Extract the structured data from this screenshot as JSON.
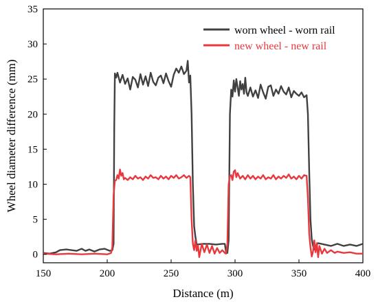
{
  "chart_data": {
    "type": "line",
    "title": "",
    "xlabel": "Distance (m)",
    "ylabel": "Wheel diameter difference (mm)",
    "xlim": [
      150,
      400
    ],
    "ylim": [
      -1.2,
      35
    ],
    "xticks": [
      150,
      200,
      250,
      300,
      350,
      400
    ],
    "yticks": [
      0,
      5,
      10,
      15,
      20,
      25,
      30,
      35
    ],
    "grid": false,
    "legend_position": "top-right",
    "series": [
      {
        "name": "worn wheel - worn rail",
        "color": "#404040",
        "points": [
          [
            150,
            0.2
          ],
          [
            155,
            0.1
          ],
          [
            160,
            0.3
          ],
          [
            163,
            0.6
          ],
          [
            168,
            0.7
          ],
          [
            172,
            0.6
          ],
          [
            176,
            0.5
          ],
          [
            180,
            0.8
          ],
          [
            183,
            0.5
          ],
          [
            186,
            0.7
          ],
          [
            190,
            0.4
          ],
          [
            194,
            0.7
          ],
          [
            198,
            0.8
          ],
          [
            202,
            0.5
          ],
          [
            204,
            0.6
          ],
          [
            205,
            1.5
          ],
          [
            205.5,
            18
          ],
          [
            206,
            25.8
          ],
          [
            207,
            25.2
          ],
          [
            208,
            25.9
          ],
          [
            210,
            24.5
          ],
          [
            212,
            25.6
          ],
          [
            214,
            24.3
          ],
          [
            216,
            25.1
          ],
          [
            218,
            23.5
          ],
          [
            220,
            25.3
          ],
          [
            222,
            24.9
          ],
          [
            224,
            23.8
          ],
          [
            226,
            25.7
          ],
          [
            228,
            24.2
          ],
          [
            230,
            25.4
          ],
          [
            232,
            24.0
          ],
          [
            234,
            25.9
          ],
          [
            236,
            24.6
          ],
          [
            238,
            24.1
          ],
          [
            240,
            25.2
          ],
          [
            242,
            25.5
          ],
          [
            244,
            24.4
          ],
          [
            246,
            25.8
          ],
          [
            248,
            24.7
          ],
          [
            250,
            23.9
          ],
          [
            252,
            25.6
          ],
          [
            254,
            26.5
          ],
          [
            256,
            25.9
          ],
          [
            258,
            26.8
          ],
          [
            260,
            25.7
          ],
          [
            262,
            26.2
          ],
          [
            263,
            27.6
          ],
          [
            264,
            24.5
          ],
          [
            265,
            25.5
          ],
          [
            266,
            20
          ],
          [
            267,
            10
          ],
          [
            268,
            4
          ],
          [
            269,
            2.5
          ],
          [
            270,
            1.4
          ],
          [
            275,
            1.5
          ],
          [
            280,
            1.5
          ],
          [
            285,
            1.4
          ],
          [
            290,
            1.5
          ],
          [
            292,
            1.5
          ],
          [
            293,
            0.3
          ],
          [
            294,
            0.2
          ],
          [
            295,
            2
          ],
          [
            296,
            20
          ],
          [
            297,
            23.5
          ],
          [
            298,
            22.5
          ],
          [
            299,
            24.8
          ],
          [
            300,
            23.2
          ],
          [
            301,
            25
          ],
          [
            302,
            23.8
          ],
          [
            303,
            22.6
          ],
          [
            304,
            24.7
          ],
          [
            305,
            23.5
          ],
          [
            306,
            24.3
          ],
          [
            307,
            22.9
          ],
          [
            308,
            25.2
          ],
          [
            309,
            23.1
          ],
          [
            310,
            22.6
          ],
          [
            312,
            23.8
          ],
          [
            314,
            22.5
          ],
          [
            316,
            23.4
          ],
          [
            318,
            22.3
          ],
          [
            320,
            24.2
          ],
          [
            322,
            23.1
          ],
          [
            324,
            22.2
          ],
          [
            326,
            23.9
          ],
          [
            328,
            24.1
          ],
          [
            330,
            22.6
          ],
          [
            332,
            23.5
          ],
          [
            334,
            22.9
          ],
          [
            336,
            24.0
          ],
          [
            338,
            23.2
          ],
          [
            340,
            22.8
          ],
          [
            342,
            23.8
          ],
          [
            344,
            22.4
          ],
          [
            346,
            23.3
          ],
          [
            348,
            22.9
          ],
          [
            350,
            22.6
          ],
          [
            352,
            23.1
          ],
          [
            354,
            22.4
          ],
          [
            356,
            22.7
          ],
          [
            357,
            20
          ],
          [
            358,
            12
          ],
          [
            359,
            5
          ],
          [
            360,
            2.2
          ],
          [
            361,
            1.2
          ],
          [
            362,
            0.7
          ],
          [
            363,
            1.2
          ],
          [
            365,
            1.6
          ],
          [
            370,
            1.4
          ],
          [
            375,
            1.2
          ],
          [
            380,
            1.5
          ],
          [
            385,
            1.2
          ],
          [
            390,
            1.4
          ],
          [
            395,
            1.2
          ],
          [
            400,
            1.5
          ]
        ]
      },
      {
        "name": "new wheel - new rail",
        "color": "#e8383d",
        "points": [
          [
            150,
            0.1
          ],
          [
            160,
            0.0
          ],
          [
            170,
            0.1
          ],
          [
            180,
            0.0
          ],
          [
            190,
            0.1
          ],
          [
            200,
            0.0
          ],
          [
            203,
            0.2
          ],
          [
            204,
            1
          ],
          [
            205,
            8.5
          ],
          [
            206,
            10.5
          ],
          [
            207,
            10.6
          ],
          [
            208,
            11.3
          ],
          [
            209,
            10.8
          ],
          [
            210,
            12.1
          ],
          [
            211,
            11.2
          ],
          [
            212,
            11.6
          ],
          [
            213,
            10.7
          ],
          [
            214,
            10.9
          ],
          [
            216,
            10.6
          ],
          [
            218,
            11.0
          ],
          [
            220,
            10.7
          ],
          [
            222,
            11.2
          ],
          [
            224,
            10.8
          ],
          [
            226,
            11.0
          ],
          [
            228,
            10.6
          ],
          [
            230,
            11.1
          ],
          [
            232,
            10.8
          ],
          [
            234,
            11.3
          ],
          [
            236,
            10.9
          ],
          [
            238,
            11.0
          ],
          [
            240,
            10.7
          ],
          [
            242,
            11.2
          ],
          [
            244,
            10.8
          ],
          [
            246,
            11.1
          ],
          [
            248,
            10.7
          ],
          [
            250,
            11.2
          ],
          [
            252,
            10.9
          ],
          [
            254,
            11.3
          ],
          [
            256,
            10.8
          ],
          [
            258,
            11.0
          ],
          [
            260,
            11.3
          ],
          [
            262,
            10.9
          ],
          [
            264,
            11.2
          ],
          [
            265,
            11.0
          ],
          [
            266,
            5
          ],
          [
            267,
            1.5
          ],
          [
            268,
            0.6
          ],
          [
            269,
            2.0
          ],
          [
            270,
            0.5
          ],
          [
            271,
            1.3
          ],
          [
            272,
            -0.4
          ],
          [
            274,
            1.5
          ],
          [
            276,
            0.3
          ],
          [
            278,
            1.4
          ],
          [
            280,
            0.2
          ],
          [
            282,
            1.2
          ],
          [
            284,
            0.1
          ],
          [
            286,
            0.9
          ],
          [
            288,
            0.2
          ],
          [
            290,
            0.6
          ],
          [
            292,
            0.2
          ],
          [
            293,
            0.1
          ],
          [
            294,
            1.5
          ],
          [
            295,
            10.0
          ],
          [
            296,
            11.2
          ],
          [
            297,
            11.3
          ],
          [
            298,
            10.6
          ],
          [
            299,
            11.8
          ],
          [
            300,
            12.0
          ],
          [
            301,
            11.0
          ],
          [
            302,
            11.6
          ],
          [
            304,
            10.8
          ],
          [
            306,
            11.2
          ],
          [
            308,
            10.7
          ],
          [
            310,
            11.3
          ],
          [
            312,
            10.8
          ],
          [
            314,
            11.2
          ],
          [
            316,
            10.7
          ],
          [
            318,
            11.1
          ],
          [
            320,
            10.8
          ],
          [
            322,
            11.3
          ],
          [
            324,
            10.7
          ],
          [
            326,
            11.0
          ],
          [
            328,
            10.8
          ],
          [
            330,
            11.3
          ],
          [
            332,
            10.7
          ],
          [
            334,
            11.1
          ],
          [
            336,
            10.8
          ],
          [
            338,
            11.2
          ],
          [
            340,
            10.9
          ],
          [
            342,
            11.4
          ],
          [
            344,
            10.8
          ],
          [
            346,
            11.1
          ],
          [
            348,
            10.7
          ],
          [
            350,
            11.2
          ],
          [
            352,
            10.8
          ],
          [
            354,
            11.3
          ],
          [
            356,
            11.2
          ],
          [
            357,
            8
          ],
          [
            358,
            3
          ],
          [
            359,
            1.0
          ],
          [
            360,
            -0.3
          ],
          [
            361,
            0.4
          ],
          [
            362,
            2.0
          ],
          [
            363,
            0.3
          ],
          [
            364,
            1.6
          ],
          [
            365,
            -0.4
          ],
          [
            366,
            1.2
          ],
          [
            368,
            0.1
          ],
          [
            370,
            0.8
          ],
          [
            372,
            0.2
          ],
          [
            375,
            0.6
          ],
          [
            378,
            0.2
          ],
          [
            380,
            0.4
          ],
          [
            385,
            0.2
          ],
          [
            390,
            0.3
          ],
          [
            395,
            0.1
          ],
          [
            400,
            0.1
          ]
        ]
      }
    ]
  }
}
